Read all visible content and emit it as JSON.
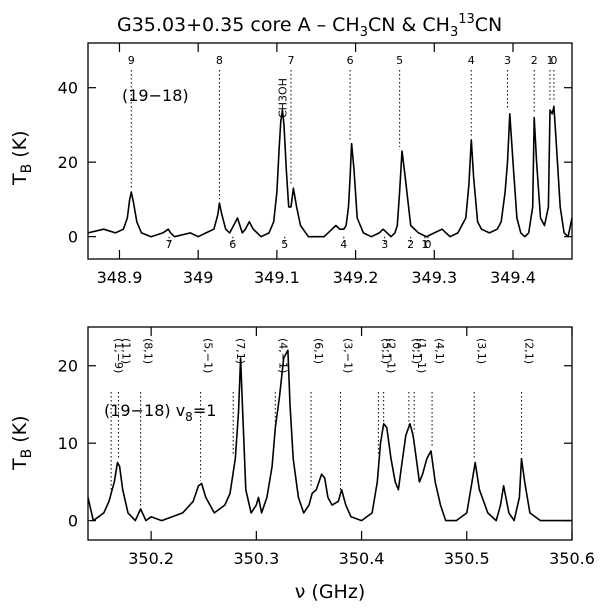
{
  "chart_data": [
    {
      "id": "top",
      "type": "line",
      "title": "G35.03+0.35 core A – CH",
      "title_parts": [
        "G35.03+0.35 core A – CH",
        "3",
        "CN & CH",
        "3",
        "13",
        "CN"
      ],
      "xlabel": "",
      "ylabel": "T",
      "ylabel_sub": "B",
      "ylabel_unit": "(K)",
      "xlim": [
        348.86,
        349.475
      ],
      "ylim": [
        -6,
        52
      ],
      "xticks": [
        348.9,
        349.0,
        349.1,
        349.2,
        349.3,
        349.4
      ],
      "xtick_labels": [
        "348.9",
        "349",
        "349.1",
        "349.2",
        "349.3",
        "349.4"
      ],
      "yticks": [
        0,
        20,
        40
      ],
      "ytick_labels": [
        "0",
        "20",
        "40"
      ],
      "annotation": "(19−18)",
      "upper_markers": [
        {
          "label": "9",
          "x": 348.915,
          "y_from": 12
        },
        {
          "label": "8",
          "x": 349.027,
          "y_from": 9
        },
        {
          "label": "7",
          "x": 349.118,
          "y_from": 13
        },
        {
          "label": "6",
          "x": 349.193,
          "y_from": 25
        },
        {
          "label": "5",
          "x": 349.256,
          "y_from": 23
        },
        {
          "label": "4",
          "x": 349.347,
          "y_from": 26
        },
        {
          "label": "3",
          "x": 349.393,
          "y_from": 33
        },
        {
          "label": "2",
          "x": 349.427,
          "y_from": 32
        },
        {
          "label": "1",
          "x": 349.447,
          "y_from": 35
        },
        {
          "label": "0",
          "x": 349.452,
          "y_from": 35
        }
      ],
      "molecule_marker": {
        "label": "CH3OH",
        "x": 349.107
      },
      "lower_markers": [
        {
          "label": "7",
          "x": 348.963
        },
        {
          "label": "6",
          "x": 349.044
        },
        {
          "label": "5",
          "x": 349.11
        },
        {
          "label": "4",
          "x": 349.185
        },
        {
          "label": "3",
          "x": 349.237
        },
        {
          "label": "2",
          "x": 349.27
        },
        {
          "label": "1",
          "x": 349.288
        },
        {
          "label": "0",
          "x": 349.292
        }
      ],
      "series": [
        {
          "name": "spectrum",
          "x": [
            348.86,
            348.88,
            348.895,
            348.905,
            348.91,
            348.913,
            348.915,
            348.918,
            348.922,
            348.928,
            348.94,
            348.955,
            348.962,
            348.965,
            348.97,
            348.99,
            349.0,
            349.01,
            349.02,
            349.025,
            349.027,
            349.03,
            349.035,
            349.04,
            349.045,
            349.05,
            349.053,
            349.056,
            349.06,
            349.065,
            349.07,
            349.08,
            349.09,
            349.096,
            349.1,
            349.103,
            349.105,
            349.107,
            349.109,
            349.112,
            349.115,
            349.118,
            349.121,
            349.125,
            349.13,
            349.14,
            349.16,
            349.17,
            349.175,
            349.18,
            349.185,
            349.188,
            349.191,
            349.193,
            349.195,
            349.198,
            349.202,
            349.21,
            349.22,
            349.23,
            349.235,
            349.24,
            349.245,
            349.25,
            349.253,
            349.256,
            349.259,
            349.263,
            349.27,
            349.28,
            349.29,
            349.3,
            349.31,
            349.32,
            349.33,
            349.34,
            349.344,
            349.347,
            349.35,
            349.355,
            349.36,
            349.37,
            349.38,
            349.385,
            349.39,
            349.393,
            349.396,
            349.4,
            349.405,
            349.41,
            349.415,
            349.42,
            349.425,
            349.427,
            349.43,
            349.435,
            349.44,
            349.445,
            349.447,
            349.45,
            349.452,
            349.455,
            349.46,
            349.465,
            349.47,
            349.475
          ],
          "y": [
            1,
            2,
            1,
            2,
            5,
            10,
            12,
            9,
            4,
            1,
            0,
            1,
            2,
            1,
            0,
            1,
            0,
            1,
            2,
            6,
            9,
            6,
            2,
            1,
            3,
            5,
            3,
            1,
            2,
            4,
            2,
            0,
            1,
            4,
            12,
            24,
            31,
            34,
            30,
            18,
            8,
            8,
            13,
            8,
            3,
            0,
            0,
            2,
            3,
            2,
            2,
            3,
            8,
            16,
            25,
            18,
            5,
            1,
            0,
            1,
            2,
            1,
            0,
            1,
            3,
            12,
            23,
            16,
            3,
            1,
            0,
            1,
            2,
            0,
            1,
            5,
            14,
            26,
            16,
            4,
            2,
            1,
            2,
            4,
            12,
            20,
            33,
            20,
            5,
            1,
            0,
            1,
            8,
            32,
            20,
            5,
            3,
            8,
            34,
            33,
            35,
            25,
            8,
            1,
            0,
            5
          ]
        }
      ]
    },
    {
      "id": "bottom",
      "type": "line",
      "xlabel": "ν (GHz)",
      "ylabel": "T",
      "ylabel_sub": "B",
      "ylabel_unit": "(K)",
      "xlim": [
        350.14,
        350.6
      ],
      "ylim": [
        -2.5,
        25
      ],
      "xticks": [
        350.2,
        350.3,
        350.4,
        350.5,
        350.6
      ],
      "xtick_labels": [
        "350.2",
        "350.3",
        "350.4",
        "350.5",
        "350.6"
      ],
      "yticks": [
        0,
        10,
        20
      ],
      "ytick_labels": [
        "0",
        "10",
        "20"
      ],
      "annotation": "(19−18) v",
      "annotation_sub": "8",
      "annotation_tail": "=1",
      "markers": [
        {
          "label": "(1,−9)",
          "x": 350.162,
          "y_from": 3
        },
        {
          "label": "(1,1)",
          "x": 350.169,
          "y_from": 7.5
        },
        {
          "label": "(8,1)",
          "x": 350.19,
          "y_from": 1.5
        },
        {
          "label": "(5,−1)",
          "x": 350.247,
          "y_from": 4.8
        },
        {
          "label": "(7,1)",
          "x": 350.278,
          "y_from": 8
        },
        {
          "label": "(4,−1)",
          "x": 350.318,
          "y_from": 12
        },
        {
          "label": "(6,1)",
          "x": 350.352,
          "y_from": 3.8
        },
        {
          "label": "(3,−1)",
          "x": 350.38,
          "y_from": 3
        },
        {
          "label": "(5,1)",
          "x": 350.416,
          "y_from": 8
        },
        {
          "label": "(2,−1)",
          "x": 350.421,
          "y_from": 12
        },
        {
          "label": "(0,1)",
          "x": 350.445,
          "y_from": 12
        },
        {
          "label": "(1,−1)",
          "x": 350.45,
          "y_from": 11
        },
        {
          "label": "(4,1)",
          "x": 350.467,
          "y_from": 9
        },
        {
          "label": "(3,1)",
          "x": 350.507,
          "y_from": 7.5
        },
        {
          "label": "(2,1)",
          "x": 350.552,
          "y_from": 8
        }
      ],
      "series": [
        {
          "name": "spectrum",
          "x": [
            350.14,
            350.145,
            350.15,
            350.155,
            350.16,
            350.165,
            350.168,
            350.17,
            350.173,
            350.178,
            350.185,
            350.19,
            350.195,
            350.2,
            350.21,
            350.22,
            350.23,
            350.24,
            350.245,
            350.248,
            350.252,
            350.26,
            350.27,
            350.275,
            350.28,
            350.283,
            350.285,
            350.287,
            350.29,
            350.295,
            350.3,
            350.302,
            350.305,
            350.31,
            350.315,
            350.318,
            350.322,
            350.326,
            350.33,
            350.332,
            350.335,
            350.34,
            350.345,
            350.35,
            350.353,
            350.357,
            350.362,
            350.365,
            350.368,
            350.372,
            350.378,
            350.381,
            350.385,
            350.39,
            350.4,
            350.41,
            350.415,
            350.418,
            350.421,
            350.424,
            350.428,
            350.432,
            350.435,
            350.438,
            350.442,
            350.446,
            350.449,
            350.452,
            350.455,
            350.458,
            350.462,
            350.466,
            350.47,
            350.475,
            350.48,
            350.49,
            350.5,
            350.505,
            350.508,
            350.512,
            350.52,
            350.528,
            350.532,
            350.535,
            350.54,
            350.545,
            350.55,
            350.552,
            350.555,
            350.56,
            350.57,
            350.58,
            350.59,
            350.6
          ],
          "y": [
            3,
            0,
            0.5,
            1,
            2.5,
            5,
            7.5,
            7,
            4,
            1,
            0,
            1.5,
            0,
            0.5,
            0,
            0.5,
            1,
            2.5,
            4.5,
            4.8,
            3,
            1,
            2,
            3.5,
            8,
            14,
            21,
            14,
            4,
            1,
            2,
            3,
            1,
            3,
            7,
            12,
            16,
            21,
            22,
            15,
            8,
            3,
            1,
            2,
            3.5,
            4,
            6,
            5.5,
            3,
            2,
            2.5,
            4,
            2,
            0.5,
            0,
            1,
            5,
            10,
            12.5,
            12,
            8,
            5,
            4,
            7,
            11,
            12.5,
            11,
            8,
            5,
            6,
            8,
            9,
            5,
            2,
            0,
            0,
            1,
            5,
            7.5,
            4,
            1,
            0,
            2,
            4.5,
            1,
            0,
            3,
            8,
            5,
            1,
            0,
            0,
            0,
            0
          ]
        }
      ]
    }
  ]
}
